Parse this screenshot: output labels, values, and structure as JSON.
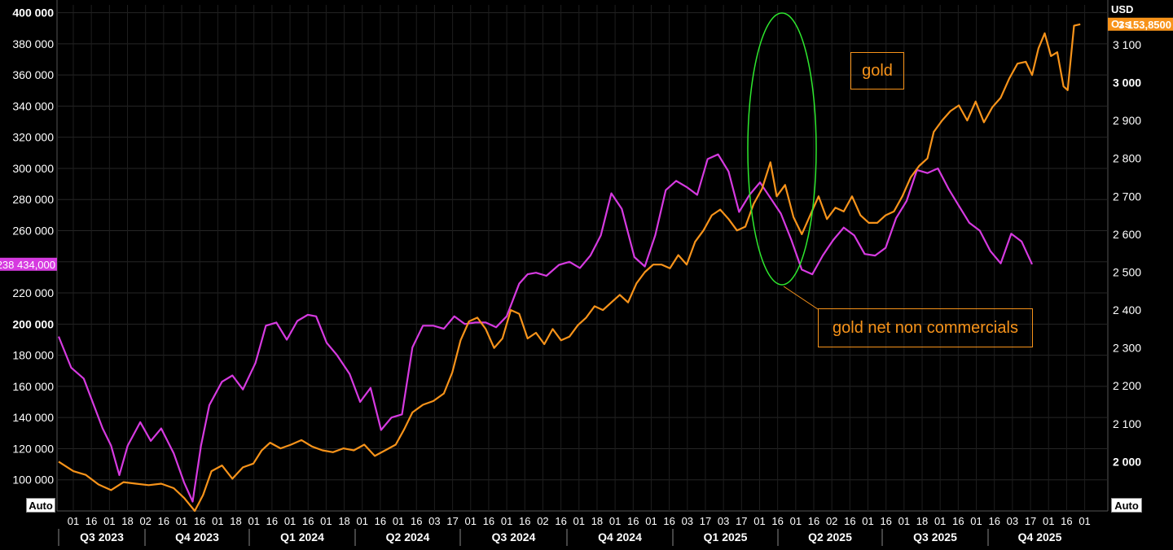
{
  "chart_data": {
    "type": "line",
    "x_axis": {
      "quarters": [
        "Q3 2023",
        "Q4 2023",
        "Q1 2024",
        "Q2 2024",
        "Q3 2024",
        "Q4 2024",
        "Q1 2025",
        "Q2 2025",
        "Q3 2025",
        "Q4 2025"
      ],
      "day_ticks": [
        "01",
        "16",
        "01",
        "18",
        "02",
        "16",
        "01",
        "16",
        "01",
        "18",
        "01",
        "16",
        "01",
        "16",
        "01",
        "18",
        "01",
        "16",
        "01",
        "16",
        "03",
        "17",
        "01",
        "16",
        "01",
        "16",
        "02",
        "16",
        "01",
        "18",
        "01",
        "16",
        "01",
        "16",
        "03",
        "17",
        "03",
        "17",
        "01",
        "16",
        "01",
        "16",
        "02",
        "16",
        "01",
        "16",
        "01",
        "18",
        "01",
        "16",
        "01",
        "16",
        "03",
        "17",
        "01",
        "16",
        "01"
      ]
    },
    "left_axis": {
      "ylim": [
        80000,
        405000
      ],
      "ticks": [
        "400 000",
        "380 000",
        "360 000",
        "340 000",
        "320 000",
        "300 000",
        "280 000",
        "260 000",
        "240 000",
        "220 000",
        "200 000",
        "180 000",
        "160 000",
        "140 000",
        "120 000",
        "100 000"
      ],
      "tick_values": [
        400000,
        380000,
        360000,
        340000,
        320000,
        300000,
        280000,
        260000,
        240000,
        220000,
        200000,
        180000,
        160000,
        140000,
        120000,
        100000
      ],
      "last_value_label": "238 434,000"
    },
    "right_axis": {
      "unit_top": "USD",
      "unit_bottom": "Ozs",
      "ylim": [
        1870,
        3205
      ],
      "ticks": [
        "3 100",
        "3 000",
        "2 900",
        "2 800",
        "2 700",
        "2 600",
        "2 500",
        "2 400",
        "2 300",
        "2 200",
        "2 100",
        "2 000"
      ],
      "tick_values": [
        3100,
        3000,
        2900,
        2800,
        2700,
        2600,
        2500,
        2400,
        2300,
        2200,
        2100,
        2000
      ],
      "last_value_label": "3 153,8500"
    },
    "series": [
      {
        "name": "gold net non commercials",
        "axis": "left",
        "color": "#d63ae0",
        "points": [
          [
            0.0,
            192000
          ],
          [
            1.2,
            172000
          ],
          [
            2.4,
            165000
          ],
          [
            4.2,
            133000
          ],
          [
            5.0,
            122000
          ],
          [
            5.8,
            103000
          ],
          [
            6.6,
            122000
          ],
          [
            7.8,
            137000
          ],
          [
            8.8,
            125000
          ],
          [
            9.8,
            133000
          ],
          [
            11.0,
            117000
          ],
          [
            12.0,
            98000
          ],
          [
            12.8,
            86000
          ],
          [
            13.6,
            122000
          ],
          [
            14.4,
            148000
          ],
          [
            15.6,
            163000
          ],
          [
            16.6,
            167000
          ],
          [
            17.6,
            158000
          ],
          [
            18.8,
            175000
          ],
          [
            19.8,
            199000
          ],
          [
            20.8,
            201000
          ],
          [
            21.8,
            190000
          ],
          [
            22.8,
            202000
          ],
          [
            23.8,
            206000
          ],
          [
            24.6,
            205000
          ],
          [
            25.6,
            188000
          ],
          [
            26.6,
            180000
          ],
          [
            27.8,
            168000
          ],
          [
            28.8,
            150000
          ],
          [
            29.8,
            159000
          ],
          [
            30.8,
            132000
          ],
          [
            31.8,
            140000
          ],
          [
            32.8,
            142000
          ],
          [
            33.8,
            185000
          ],
          [
            34.8,
            199000
          ],
          [
            35.8,
            199000
          ],
          [
            36.8,
            197000
          ],
          [
            37.8,
            205000
          ],
          [
            38.8,
            200000
          ],
          [
            39.8,
            201000
          ],
          [
            40.8,
            201000
          ],
          [
            41.8,
            198000
          ],
          [
            42.8,
            205000
          ],
          [
            44.0,
            226000
          ],
          [
            44.8,
            232000
          ],
          [
            45.6,
            233000
          ],
          [
            46.6,
            231000
          ],
          [
            47.8,
            238000
          ],
          [
            48.8,
            240000
          ],
          [
            49.8,
            236000
          ],
          [
            50.8,
            244000
          ],
          [
            51.8,
            257000
          ],
          [
            52.8,
            284000
          ],
          [
            53.8,
            274000
          ],
          [
            55.0,
            243000
          ],
          [
            56.0,
            237000
          ],
          [
            57.0,
            257000
          ],
          [
            58.0,
            286000
          ],
          [
            59.0,
            292000
          ],
          [
            60.0,
            288000
          ],
          [
            61.0,
            283000
          ],
          [
            62.0,
            306000
          ],
          [
            63.0,
            309000
          ],
          [
            64.0,
            298000
          ],
          [
            65.0,
            272000
          ],
          [
            66.0,
            283000
          ],
          [
            67.0,
            291000
          ],
          [
            68.0,
            281000
          ],
          [
            69.0,
            271000
          ],
          [
            70.0,
            254000
          ],
          [
            71.0,
            235000
          ],
          [
            72.0,
            232000
          ],
          [
            73.0,
            244000
          ],
          [
            74.0,
            254000
          ],
          [
            75.0,
            262000
          ],
          [
            76.0,
            257000
          ],
          [
            77.0,
            245000
          ],
          [
            78.0,
            244000
          ],
          [
            79.0,
            249000
          ],
          [
            80.0,
            268000
          ],
          [
            81.0,
            279000
          ],
          [
            82.0,
            299000
          ],
          [
            83.0,
            297000
          ],
          [
            84.0,
            300000
          ],
          [
            85.0,
            287000
          ],
          [
            86.0,
            276000
          ],
          [
            87.0,
            265000
          ],
          [
            88.0,
            260000
          ],
          [
            89.0,
            247000
          ],
          [
            90.0,
            239000
          ],
          [
            91.0,
            258000
          ],
          [
            92.0,
            253000
          ],
          [
            93.0,
            238434
          ]
        ]
      },
      {
        "name": "gold",
        "axis": "right",
        "color": "#f7931a",
        "points": [
          [
            0.0,
            2000
          ],
          [
            1.4,
            1975
          ],
          [
            2.6,
            1965
          ],
          [
            3.8,
            1940
          ],
          [
            5.0,
            1925
          ],
          [
            6.2,
            1946
          ],
          [
            7.4,
            1942
          ],
          [
            8.6,
            1938
          ],
          [
            9.8,
            1942
          ],
          [
            11.0,
            1930
          ],
          [
            12.0,
            1904
          ],
          [
            13.0,
            1870
          ],
          [
            13.8,
            1912
          ],
          [
            14.6,
            1975
          ],
          [
            15.6,
            1990
          ],
          [
            16.6,
            1955
          ],
          [
            17.6,
            1985
          ],
          [
            18.6,
            1995
          ],
          [
            19.4,
            2030
          ],
          [
            20.2,
            2050
          ],
          [
            21.2,
            2035
          ],
          [
            22.2,
            2045
          ],
          [
            23.2,
            2057
          ],
          [
            24.2,
            2040
          ],
          [
            25.2,
            2030
          ],
          [
            26.2,
            2025
          ],
          [
            27.2,
            2035
          ],
          [
            28.2,
            2030
          ],
          [
            29.2,
            2045
          ],
          [
            30.2,
            2015
          ],
          [
            31.2,
            2030
          ],
          [
            32.2,
            2045
          ],
          [
            33.0,
            2085
          ],
          [
            33.8,
            2130
          ],
          [
            34.8,
            2150
          ],
          [
            35.8,
            2160
          ],
          [
            36.8,
            2180
          ],
          [
            37.6,
            2235
          ],
          [
            38.4,
            2320
          ],
          [
            39.2,
            2370
          ],
          [
            40.0,
            2380
          ],
          [
            40.8,
            2350
          ],
          [
            41.6,
            2300
          ],
          [
            42.4,
            2325
          ],
          [
            43.2,
            2400
          ],
          [
            44.0,
            2390
          ],
          [
            44.8,
            2325
          ],
          [
            45.6,
            2340
          ],
          [
            46.4,
            2310
          ],
          [
            47.2,
            2350
          ],
          [
            48.0,
            2320
          ],
          [
            48.8,
            2330
          ],
          [
            49.6,
            2360
          ],
          [
            50.4,
            2380
          ],
          [
            51.2,
            2410
          ],
          [
            52.0,
            2400
          ],
          [
            52.8,
            2420
          ],
          [
            53.6,
            2440
          ],
          [
            54.4,
            2420
          ],
          [
            55.2,
            2470
          ],
          [
            56.0,
            2500
          ],
          [
            56.8,
            2520
          ],
          [
            57.6,
            2520
          ],
          [
            58.4,
            2510
          ],
          [
            59.2,
            2545
          ],
          [
            60.0,
            2520
          ],
          [
            60.8,
            2580
          ],
          [
            61.6,
            2610
          ],
          [
            62.4,
            2650
          ],
          [
            63.2,
            2665
          ],
          [
            64.0,
            2640
          ],
          [
            64.8,
            2610
          ],
          [
            65.6,
            2620
          ],
          [
            66.4,
            2680
          ],
          [
            67.2,
            2720
          ],
          [
            68.0,
            2790
          ],
          [
            68.6,
            2700
          ],
          [
            69.4,
            2730
          ],
          [
            70.2,
            2645
          ],
          [
            71.0,
            2600
          ],
          [
            71.8,
            2650
          ],
          [
            72.6,
            2700
          ],
          [
            73.4,
            2640
          ],
          [
            74.2,
            2670
          ],
          [
            75.0,
            2660
          ],
          [
            75.8,
            2700
          ],
          [
            76.6,
            2650
          ],
          [
            77.4,
            2630
          ],
          [
            78.2,
            2630
          ],
          [
            79.0,
            2650
          ],
          [
            79.8,
            2660
          ],
          [
            80.6,
            2700
          ],
          [
            81.4,
            2750
          ],
          [
            82.2,
            2780
          ],
          [
            83.0,
            2800
          ],
          [
            83.6,
            2870
          ],
          [
            84.4,
            2900
          ],
          [
            85.2,
            2925
          ],
          [
            86.0,
            2940
          ],
          [
            86.8,
            2900
          ],
          [
            87.6,
            2950
          ],
          [
            88.4,
            2895
          ],
          [
            89.2,
            2935
          ],
          [
            90.0,
            2960
          ],
          [
            90.8,
            3010
          ],
          [
            91.6,
            3050
          ],
          [
            92.4,
            3055
          ],
          [
            93.0,
            3020
          ],
          [
            93.6,
            3090
          ],
          [
            94.2,
            3130
          ],
          [
            94.8,
            3070
          ],
          [
            95.4,
            3080
          ],
          [
            96.0,
            2990
          ],
          [
            96.4,
            2980
          ],
          [
            97.0,
            3150
          ],
          [
            97.6,
            3154
          ]
        ]
      }
    ],
    "annotations": {
      "label_gold": "gold",
      "label_net": "gold net non commercials"
    },
    "colors": {
      "background": "#000000",
      "grid": "#2a2a2a",
      "axis_text": "#ffffff",
      "gold": "#f7931a",
      "net": "#d63ae0",
      "ellipse": "#2ee82e"
    },
    "auto_label": "Auto"
  }
}
